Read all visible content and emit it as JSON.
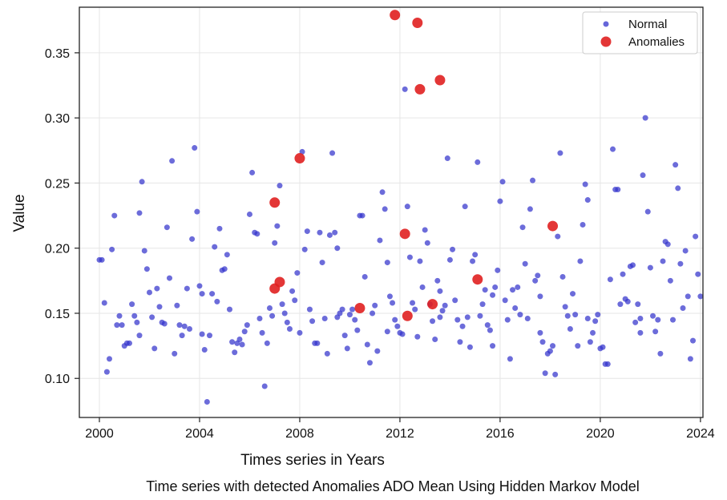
{
  "chart_data": {
    "type": "scatter",
    "title": "",
    "caption": "Time series with detected Anomalies ADO Mean Using Hidden Markov Model",
    "xlabel": "Times series in Years",
    "ylabel": "Value",
    "xlim": [
      1999.2,
      2024.1
    ],
    "ylim": [
      0.07,
      0.385
    ],
    "x_ticks": [
      "2000",
      "2004",
      "2008",
      "2012",
      "2016",
      "2020",
      "2024"
    ],
    "y_ticks": [
      "0.10",
      "0.15",
      "0.20",
      "0.25",
      "0.30",
      "0.35"
    ],
    "grid": true,
    "legend_position": "top-right",
    "series": [
      {
        "name": "Normal",
        "color": "#3333cc",
        "marker": "small-circle",
        "points": [
          [
            2000.0,
            0.191
          ],
          [
            2000.1,
            0.191
          ],
          [
            2000.2,
            0.158
          ],
          [
            2000.3,
            0.105
          ],
          [
            2000.4,
            0.115
          ],
          [
            2000.5,
            0.199
          ],
          [
            2000.6,
            0.225
          ],
          [
            2000.7,
            0.141
          ],
          [
            2000.8,
            0.148
          ],
          [
            2000.9,
            0.141
          ],
          [
            2001.0,
            0.125
          ],
          [
            2001.1,
            0.127
          ],
          [
            2001.2,
            0.127
          ],
          [
            2001.3,
            0.157
          ],
          [
            2001.4,
            0.148
          ],
          [
            2001.5,
            0.143
          ],
          [
            2001.6,
            0.133
          ],
          [
            2001.6,
            0.227
          ],
          [
            2001.7,
            0.251
          ],
          [
            2001.8,
            0.198
          ],
          [
            2001.9,
            0.184
          ],
          [
            2002.0,
            0.166
          ],
          [
            2002.1,
            0.147
          ],
          [
            2002.2,
            0.123
          ],
          [
            2002.3,
            0.169
          ],
          [
            2002.4,
            0.155
          ],
          [
            2002.5,
            0.143
          ],
          [
            2002.6,
            0.142
          ],
          [
            2002.7,
            0.216
          ],
          [
            2002.8,
            0.177
          ],
          [
            2002.9,
            0.267
          ],
          [
            2003.0,
            0.119
          ],
          [
            2003.1,
            0.156
          ],
          [
            2003.2,
            0.141
          ],
          [
            2003.3,
            0.133
          ],
          [
            2003.4,
            0.14
          ],
          [
            2003.5,
            0.169
          ],
          [
            2003.6,
            0.138
          ],
          [
            2003.7,
            0.207
          ],
          [
            2003.8,
            0.277
          ],
          [
            2003.9,
            0.228
          ],
          [
            2004.0,
            0.171
          ],
          [
            2004.1,
            0.165
          ],
          [
            2004.1,
            0.134
          ],
          [
            2004.2,
            0.122
          ],
          [
            2004.3,
            0.082
          ],
          [
            2004.4,
            0.133
          ],
          [
            2004.5,
            0.165
          ],
          [
            2004.6,
            0.201
          ],
          [
            2004.7,
            0.159
          ],
          [
            2004.8,
            0.215
          ],
          [
            2004.9,
            0.183
          ],
          [
            2005.0,
            0.184
          ],
          [
            2005.1,
            0.195
          ],
          [
            2005.2,
            0.153
          ],
          [
            2005.3,
            0.128
          ],
          [
            2005.4,
            0.12
          ],
          [
            2005.5,
            0.127
          ],
          [
            2005.6,
            0.13
          ],
          [
            2005.7,
            0.126
          ],
          [
            2005.8,
            0.136
          ],
          [
            2005.9,
            0.141
          ],
          [
            2006.0,
            0.226
          ],
          [
            2006.1,
            0.258
          ],
          [
            2006.2,
            0.212
          ],
          [
            2006.3,
            0.211
          ],
          [
            2006.4,
            0.146
          ],
          [
            2006.5,
            0.135
          ],
          [
            2006.6,
            0.094
          ],
          [
            2006.7,
            0.127
          ],
          [
            2006.8,
            0.154
          ],
          [
            2006.9,
            0.148
          ],
          [
            2007.0,
            0.204
          ],
          [
            2007.1,
            0.217
          ],
          [
            2007.2,
            0.248
          ],
          [
            2007.3,
            0.157
          ],
          [
            2007.4,
            0.15
          ],
          [
            2007.5,
            0.143
          ],
          [
            2007.6,
            0.138
          ],
          [
            2007.7,
            0.167
          ],
          [
            2007.8,
            0.16
          ],
          [
            2007.9,
            0.181
          ],
          [
            2008.0,
            0.135
          ],
          [
            2008.1,
            0.274
          ],
          [
            2008.2,
            0.199
          ],
          [
            2008.3,
            0.213
          ],
          [
            2008.4,
            0.153
          ],
          [
            2008.5,
            0.144
          ],
          [
            2008.6,
            0.127
          ],
          [
            2008.7,
            0.127
          ],
          [
            2008.8,
            0.212
          ],
          [
            2008.9,
            0.189
          ],
          [
            2009.0,
            0.146
          ],
          [
            2009.1,
            0.119
          ],
          [
            2009.2,
            0.21
          ],
          [
            2009.3,
            0.273
          ],
          [
            2009.4,
            0.212
          ],
          [
            2009.5,
            0.2
          ],
          [
            2009.6,
            0.15
          ],
          [
            2009.7,
            0.153
          ],
          [
            2009.8,
            0.133
          ],
          [
            2009.9,
            0.123
          ],
          [
            2010.0,
            0.149
          ],
          [
            2010.1,
            0.153
          ],
          [
            2010.2,
            0.145
          ],
          [
            2010.3,
            0.137
          ],
          [
            2010.4,
            0.225
          ],
          [
            2010.5,
            0.225
          ],
          [
            2010.6,
            0.178
          ],
          [
            2010.7,
            0.126
          ],
          [
            2010.8,
            0.112
          ],
          [
            2010.9,
            0.15
          ],
          [
            2011.0,
            0.156
          ],
          [
            2011.1,
            0.121
          ],
          [
            2011.2,
            0.206
          ],
          [
            2011.3,
            0.243
          ],
          [
            2011.4,
            0.23
          ],
          [
            2011.5,
            0.189
          ],
          [
            2011.6,
            0.163
          ],
          [
            2011.7,
            0.158
          ],
          [
            2011.8,
            0.145
          ],
          [
            2011.9,
            0.14
          ],
          [
            2012.0,
            0.135
          ],
          [
            2012.1,
            0.134
          ],
          [
            2012.2,
            0.322
          ],
          [
            2012.3,
            0.232
          ],
          [
            2012.4,
            0.193
          ],
          [
            2012.5,
            0.158
          ],
          [
            2012.6,
            0.153
          ],
          [
            2012.7,
            0.132
          ],
          [
            2012.8,
            0.19
          ],
          [
            2012.9,
            0.17
          ],
          [
            2013.0,
            0.214
          ],
          [
            2013.1,
            0.204
          ],
          [
            2013.2,
            0.157
          ],
          [
            2013.3,
            0.144
          ],
          [
            2013.4,
            0.13
          ],
          [
            2013.5,
            0.175
          ],
          [
            2013.6,
            0.167
          ],
          [
            2013.7,
            0.152
          ],
          [
            2013.8,
            0.156
          ],
          [
            2013.9,
            0.269
          ],
          [
            2014.0,
            0.191
          ],
          [
            2014.1,
            0.199
          ],
          [
            2014.2,
            0.16
          ],
          [
            2014.3,
            0.145
          ],
          [
            2014.4,
            0.128
          ],
          [
            2014.5,
            0.14
          ],
          [
            2014.6,
            0.232
          ],
          [
            2014.7,
            0.147
          ],
          [
            2014.8,
            0.124
          ],
          [
            2014.9,
            0.19
          ],
          [
            2015.0,
            0.195
          ],
          [
            2015.1,
            0.266
          ],
          [
            2015.2,
            0.148
          ],
          [
            2015.3,
            0.157
          ],
          [
            2015.4,
            0.168
          ],
          [
            2015.5,
            0.141
          ],
          [
            2015.6,
            0.137
          ],
          [
            2015.7,
            0.125
          ],
          [
            2015.8,
            0.17
          ],
          [
            2015.9,
            0.183
          ],
          [
            2016.0,
            0.236
          ],
          [
            2016.1,
            0.251
          ],
          [
            2016.2,
            0.16
          ],
          [
            2016.3,
            0.145
          ],
          [
            2016.4,
            0.115
          ],
          [
            2016.5,
            0.168
          ],
          [
            2016.6,
            0.154
          ],
          [
            2016.7,
            0.17
          ],
          [
            2016.8,
            0.149
          ],
          [
            2016.9,
            0.216
          ],
          [
            2017.0,
            0.188
          ],
          [
            2017.1,
            0.146
          ],
          [
            2017.2,
            0.23
          ],
          [
            2017.3,
            0.252
          ],
          [
            2017.4,
            0.175
          ],
          [
            2017.5,
            0.179
          ],
          [
            2017.6,
            0.135
          ],
          [
            2017.7,
            0.128
          ],
          [
            2017.8,
            0.104
          ],
          [
            2017.9,
            0.119
          ],
          [
            2018.0,
            0.121
          ],
          [
            2018.1,
            0.125
          ],
          [
            2018.2,
            0.103
          ],
          [
            2018.3,
            0.209
          ],
          [
            2018.4,
            0.273
          ],
          [
            2018.5,
            0.178
          ],
          [
            2018.6,
            0.155
          ],
          [
            2018.7,
            0.148
          ],
          [
            2018.8,
            0.138
          ],
          [
            2018.9,
            0.165
          ],
          [
            2019.0,
            0.149
          ],
          [
            2019.1,
            0.125
          ],
          [
            2019.2,
            0.19
          ],
          [
            2019.3,
            0.218
          ],
          [
            2019.4,
            0.249
          ],
          [
            2019.5,
            0.237
          ],
          [
            2019.6,
            0.128
          ],
          [
            2019.7,
            0.135
          ],
          [
            2019.8,
            0.144
          ],
          [
            2019.9,
            0.149
          ],
          [
            2020.0,
            0.123
          ],
          [
            2020.1,
            0.124
          ],
          [
            2020.2,
            0.111
          ],
          [
            2020.3,
            0.111
          ],
          [
            2020.4,
            0.176
          ],
          [
            2020.5,
            0.276
          ],
          [
            2020.6,
            0.245
          ],
          [
            2020.7,
            0.245
          ],
          [
            2020.8,
            0.157
          ],
          [
            2020.9,
            0.18
          ],
          [
            2021.0,
            0.161
          ],
          [
            2021.1,
            0.159
          ],
          [
            2021.2,
            0.186
          ],
          [
            2021.3,
            0.187
          ],
          [
            2021.4,
            0.143
          ],
          [
            2021.5,
            0.157
          ],
          [
            2021.6,
            0.135
          ],
          [
            2021.7,
            0.256
          ],
          [
            2021.8,
            0.3
          ],
          [
            2021.9,
            0.228
          ],
          [
            2022.0,
            0.185
          ],
          [
            2022.1,
            0.148
          ],
          [
            2022.2,
            0.136
          ],
          [
            2022.3,
            0.145
          ],
          [
            2022.4,
            0.119
          ],
          [
            2022.5,
            0.19
          ],
          [
            2022.6,
            0.205
          ],
          [
            2022.7,
            0.203
          ],
          [
            2022.8,
            0.175
          ],
          [
            2022.9,
            0.145
          ],
          [
            2023.0,
            0.264
          ],
          [
            2023.1,
            0.246
          ],
          [
            2023.2,
            0.188
          ],
          [
            2023.3,
            0.154
          ],
          [
            2023.4,
            0.198
          ],
          [
            2023.5,
            0.163
          ],
          [
            2023.6,
            0.115
          ],
          [
            2023.7,
            0.129
          ],
          [
            2023.8,
            0.209
          ],
          [
            2023.9,
            0.18
          ],
          [
            2024.0,
            0.163
          ],
          [
            2021.6,
            0.146
          ],
          [
            2019.5,
            0.146
          ],
          [
            2017.6,
            0.163
          ],
          [
            2015.7,
            0.164
          ],
          [
            2013.6,
            0.147
          ],
          [
            2011.5,
            0.136
          ],
          [
            2009.5,
            0.147
          ]
        ]
      },
      {
        "name": "Anomalies",
        "color": "#e02020",
        "marker": "large-circle",
        "points": [
          [
            2007.0,
            0.235
          ],
          [
            2007.0,
            0.169
          ],
          [
            2007.2,
            0.174
          ],
          [
            2008.0,
            0.269
          ],
          [
            2010.4,
            0.154
          ],
          [
            2011.8,
            0.379
          ],
          [
            2012.2,
            0.211
          ],
          [
            2012.3,
            0.148
          ],
          [
            2012.7,
            0.373
          ],
          [
            2012.8,
            0.322
          ],
          [
            2013.3,
            0.157
          ],
          [
            2013.6,
            0.329
          ],
          [
            2015.1,
            0.176
          ],
          [
            2018.1,
            0.217
          ]
        ]
      }
    ]
  }
}
